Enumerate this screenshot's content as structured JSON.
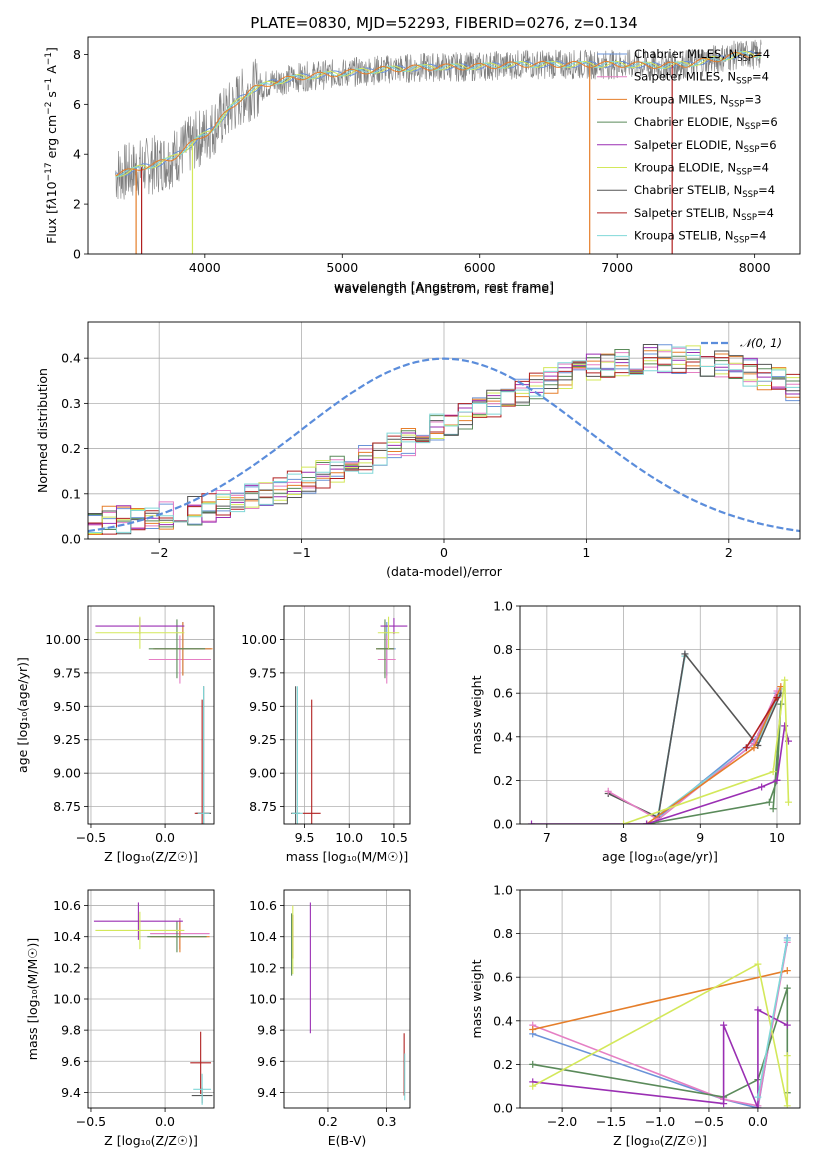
{
  "colors": {
    "chabrier_miles": "#6a93d8",
    "salpeter_miles": "#e57fc4",
    "kroupa_miles": "#e57e2a",
    "chabrier_elodie": "#5a8a5a",
    "salpeter_elodie": "#9a2fb3",
    "kroupa_elodie": "#d3e85a",
    "chabrier_stelib": "#555555",
    "salpeter_stelib": "#b02020",
    "kroupa_stelib": "#80d8d8",
    "normal": "#5b8ddb"
  },
  "chart_data": [
    {
      "id": "spectrum",
      "type": "line",
      "title": "PLATE=0830, MJD=52293, FIBERID=0276, z=0.134",
      "xlabel": "wavelength [Angstrom, rest frame]",
      "ylabel_html": "Flux [f<tspan font-style='italic'>λ</tspan>10<tspan dy='-5' font-size='9'>−17</tspan><tspan dy='5'> erg cm</tspan><tspan dy='-5' font-size='9'>−2</tspan><tspan dy='5'> s</tspan><tspan dy='-5' font-size='9'>−1</tspan><tspan dy='5'> A</tspan><tspan dy='-5' font-size='9'>−1</tspan><tspan dy='5'>]</tspan>",
      "xlim": [
        3150,
        8330
      ],
      "ylim": [
        0,
        8.7
      ],
      "xticks": [
        4000,
        5000,
        6000,
        7000,
        8000
      ],
      "yticks": [
        0,
        2,
        4,
        6,
        8
      ],
      "legend_position": "top-right",
      "legend": [
        {
          "label": "Chabrier MILES, N",
          "sub": "SSP",
          "n": "=4",
          "color_key": "chabrier_miles"
        },
        {
          "label": "Salpeter MILES, N",
          "sub": "SSP",
          "n": "=4",
          "color_key": "salpeter_miles"
        },
        {
          "label": "Kroupa MILES, N",
          "sub": "SSP",
          "n": "=3",
          "color_key": "kroupa_miles"
        },
        {
          "label": "Chabrier ELODIE, N",
          "sub": "SSP",
          "n": "=6",
          "color_key": "chabrier_elodie"
        },
        {
          "label": "Salpeter ELODIE, N",
          "sub": "SSP",
          "n": "=6",
          "color_key": "salpeter_elodie"
        },
        {
          "label": "Kroupa ELODIE, N",
          "sub": "SSP",
          "n": "=4",
          "color_key": "kroupa_elodie"
        },
        {
          "label": "Chabrier STELIB, N",
          "sub": "SSP",
          "n": "=4",
          "color_key": "chabrier_stelib"
        },
        {
          "label": "Salpeter STELIB, N",
          "sub": "SSP",
          "n": "=4",
          "color_key": "salpeter_stelib"
        },
        {
          "label": "Kroupa STELIB, N",
          "sub": "SSP",
          "n": "=4",
          "color_key": "kroupa_stelib"
        }
      ],
      "data_envelope": {
        "x": [
          3350,
          3450,
          3550,
          3650,
          3750,
          3850,
          3950,
          4050,
          4150,
          4250,
          4350,
          4500,
          4700,
          4900,
          5100,
          5300,
          5500,
          5700,
          5900,
          6100,
          6300,
          6500,
          6700,
          6900,
          7100,
          7300,
          7500,
          7700,
          7900,
          8050
        ],
        "y": [
          3.2,
          3.3,
          3.5,
          3.6,
          3.8,
          4.2,
          4.6,
          5.0,
          5.6,
          6.2,
          6.6,
          6.9,
          7.1,
          7.2,
          7.3,
          7.4,
          7.45,
          7.5,
          7.5,
          7.55,
          7.6,
          7.6,
          7.6,
          7.6,
          7.6,
          7.55,
          7.6,
          7.8,
          8.0,
          8.0
        ]
      }
    },
    {
      "id": "residuals",
      "type": "histogram",
      "xlabel": "(data-model)/error",
      "ylabel": "Normed distribution",
      "xlim": [
        -2.5,
        2.5
      ],
      "ylim": [
        0,
        0.48
      ],
      "xticks": [
        -2,
        -1,
        0,
        1,
        2
      ],
      "yticks": [
        0.0,
        0.1,
        0.2,
        0.3,
        0.4
      ],
      "legend_position": "top-right",
      "legend": [
        {
          "label": "𝒩(0, 1)",
          "color_key": "normal"
        }
      ],
      "bin_width": 0.1,
      "base_series": [
        0.037,
        0.04,
        0.042,
        0.045,
        0.048,
        0.052,
        0.057,
        0.062,
        0.068,
        0.075,
        0.083,
        0.091,
        0.1,
        0.109,
        0.119,
        0.13,
        0.141,
        0.152,
        0.164,
        0.176,
        0.19,
        0.203,
        0.216,
        0.23,
        0.245,
        0.258,
        0.272,
        0.287,
        0.3,
        0.313,
        0.326,
        0.338,
        0.349,
        0.36,
        0.369,
        0.377,
        0.384,
        0.39,
        0.395,
        0.398,
        0.399,
        0.398,
        0.395,
        0.39,
        0.384,
        0.377,
        0.369,
        0.36,
        0.349,
        0.338,
        0.326
      ]
    },
    {
      "id": "age_vs_Z",
      "type": "errorbar",
      "xlabel": "Z [log₁₀(Z/Z☉)]",
      "ylabel": "age  [log₁₀(age/yr)]",
      "xlim": [
        -0.52,
        0.33
      ],
      "ylim": [
        8.62,
        10.25
      ],
      "xticks": [
        -0.5,
        0.0
      ],
      "xticklabels": [
        "−0.5",
        "0.0"
      ],
      "yticks": [
        8.75,
        9.0,
        9.25,
        9.5,
        9.75,
        10.0
      ],
      "yticklabels": [
        "8.75",
        "9.00",
        "9.25",
        "9.50",
        "9.75",
        "10.00"
      ],
      "points": [
        {
          "x": 0.12,
          "y": 9.93,
          "xerr": 0.19,
          "yerr": 0.2,
          "color_key": "chabrier_miles"
        },
        {
          "x": 0.1,
          "y": 9.85,
          "xerr": 0.21,
          "yerr": 0.18,
          "color_key": "salpeter_miles"
        },
        {
          "x": 0.12,
          "y": 9.93,
          "xerr": 0.2,
          "yerr": 0.2,
          "color_key": "kroupa_miles"
        },
        {
          "x": 0.08,
          "y": 9.93,
          "xerr": 0.19,
          "yerr": 0.22,
          "color_key": "chabrier_elodie"
        },
        {
          "x": -0.17,
          "y": 10.1,
          "xerr": 0.3,
          "yerr": 0.06,
          "color_key": "salpeter_elodie"
        },
        {
          "x": -0.17,
          "y": 10.05,
          "xerr": 0.3,
          "yerr": 0.12,
          "color_key": "kroupa_elodie"
        },
        {
          "x": 0.26,
          "y": 8.7,
          "xerr": 0.05,
          "yerr": 0.95,
          "color_key": "chabrier_stelib"
        },
        {
          "x": 0.25,
          "y": 8.7,
          "xerr": 0.05,
          "yerr": 0.85,
          "color_key": "salpeter_stelib"
        },
        {
          "x": 0.26,
          "y": 8.7,
          "xerr": 0.04,
          "yerr": 0.95,
          "color_key": "kroupa_stelib"
        }
      ]
    },
    {
      "id": "age_vs_mass",
      "type": "errorbar",
      "xlabel": "mass [log₁₀(M/M☉)]",
      "xlim": [
        9.27,
        10.68
      ],
      "ylim": [
        8.62,
        10.25
      ],
      "xticks": [
        9.5,
        10.0,
        10.5
      ],
      "xticklabels": [
        "9.5",
        "10.0",
        "10.5"
      ],
      "yticks": [
        8.75,
        9.0,
        9.25,
        9.5,
        9.75,
        10.0
      ],
      "yticklabels": [
        "8.75",
        "9.00",
        "9.25",
        "9.50",
        "9.75",
        "10.00"
      ],
      "points": [
        {
          "x": 10.42,
          "y": 9.93,
          "xerr": 0.1,
          "yerr": 0.2,
          "color_key": "chabrier_miles"
        },
        {
          "x": 10.42,
          "y": 9.85,
          "xerr": 0.1,
          "yerr": 0.18,
          "color_key": "salpeter_miles"
        },
        {
          "x": 10.4,
          "y": 9.93,
          "xerr": 0.1,
          "yerr": 0.2,
          "color_key": "kroupa_miles"
        },
        {
          "x": 10.4,
          "y": 9.93,
          "xerr": 0.1,
          "yerr": 0.22,
          "color_key": "chabrier_elodie"
        },
        {
          "x": 10.5,
          "y": 10.1,
          "xerr": 0.15,
          "yerr": 0.06,
          "color_key": "salpeter_elodie"
        },
        {
          "x": 10.44,
          "y": 10.05,
          "xerr": 0.12,
          "yerr": 0.12,
          "color_key": "kroupa_elodie"
        },
        {
          "x": 9.4,
          "y": 8.7,
          "xerr": 0.05,
          "yerr": 0.95,
          "color_key": "chabrier_stelib"
        },
        {
          "x": 9.58,
          "y": 8.7,
          "xerr": 0.1,
          "yerr": 0.85,
          "color_key": "salpeter_stelib"
        },
        {
          "x": 9.42,
          "y": 8.7,
          "xerr": 0.06,
          "yerr": 0.95,
          "color_key": "kroupa_stelib"
        }
      ]
    },
    {
      "id": "weight_vs_age",
      "type": "line",
      "xlabel": "age  [log₁₀(age/yr)]",
      "ylabel": "mass weight",
      "xlim": [
        6.65,
        10.3
      ],
      "ylim": [
        0,
        1
      ],
      "xticks": [
        7,
        8,
        9,
        10
      ],
      "yticks": [
        0.0,
        0.2,
        0.4,
        0.6,
        0.8,
        1.0
      ],
      "series": [
        {
          "color_key": "chabrier_miles",
          "x": [
            8.8,
            8.45,
            9.75,
            10.0
          ],
          "y": [
            0.78,
            0.03,
            0.4,
            0.6
          ]
        },
        {
          "color_key": "kroupa_stelib",
          "x": [
            8.8,
            8.45,
            9.75,
            10.05
          ],
          "y": [
            0.77,
            0.04,
            0.38,
            0.62
          ]
        },
        {
          "color_key": "chabrier_stelib",
          "x": [
            7.8,
            8.45,
            8.8,
            9.75,
            10.05
          ],
          "y": [
            0.14,
            0.03,
            0.78,
            0.36,
            0.6
          ]
        },
        {
          "color_key": "salpeter_miles",
          "x": [
            7.8,
            8.45,
            9.7,
            10.0
          ],
          "y": [
            0.15,
            0.02,
            0.37,
            0.61
          ]
        },
        {
          "color_key": "kroupa_miles",
          "x": [
            8.3,
            9.7,
            10.05
          ],
          "y": [
            0.0,
            0.35,
            0.63
          ]
        },
        {
          "color_key": "chabrier_elodie",
          "x": [
            8.3,
            9.9,
            10.0,
            10.05,
            9.95
          ],
          "y": [
            0.0,
            0.1,
            0.2,
            0.55,
            0.07
          ]
        },
        {
          "color_key": "salpeter_elodie",
          "x": [
            6.8,
            8.3,
            9.8,
            10.0,
            10.1,
            10.15
          ],
          "y": [
            0.0,
            0.0,
            0.17,
            0.2,
            0.45,
            0.38
          ]
        },
        {
          "color_key": "kroupa_elodie",
          "x": [
            8.0,
            9.95,
            10.1,
            10.15
          ],
          "y": [
            0.0,
            0.24,
            0.66,
            0.1
          ]
        },
        {
          "color_key": "salpeter_stelib",
          "x": [
            9.6,
            10.0
          ],
          "y": [
            0.35,
            0.58
          ]
        }
      ]
    },
    {
      "id": "mass_vs_Z",
      "type": "errorbar",
      "xlabel": "Z [log₁₀(Z/Z☉)]",
      "ylabel": "mass [log₁₀(M/M☉)]",
      "xlim": [
        -0.52,
        0.33
      ],
      "ylim": [
        9.3,
        10.7
      ],
      "xticks": [
        -0.5,
        0.0
      ],
      "xticklabels": [
        "−0.5",
        "0.0"
      ],
      "yticks": [
        9.4,
        9.6,
        9.8,
        10.0,
        10.2,
        10.4,
        10.6
      ],
      "yticklabels": [
        "9.4",
        "9.6",
        "9.8",
        "10.0",
        "10.2",
        "10.4",
        "10.6"
      ],
      "points": [
        {
          "x": 0.1,
          "y": 10.42,
          "xerr": 0.2,
          "yerr": 0.1,
          "color_key": "chabrier_miles"
        },
        {
          "x": 0.1,
          "y": 10.42,
          "xerr": 0.2,
          "yerr": 0.1,
          "color_key": "salpeter_miles"
        },
        {
          "x": 0.1,
          "y": 10.4,
          "xerr": 0.2,
          "yerr": 0.1,
          "color_key": "kroupa_miles"
        },
        {
          "x": 0.08,
          "y": 10.4,
          "xerr": 0.2,
          "yerr": 0.1,
          "color_key": "chabrier_elodie"
        },
        {
          "x": -0.18,
          "y": 10.5,
          "xerr": 0.3,
          "yerr": 0.12,
          "color_key": "salpeter_elodie"
        },
        {
          "x": -0.17,
          "y": 10.44,
          "xerr": 0.3,
          "yerr": 0.12,
          "color_key": "kroupa_elodie"
        },
        {
          "x": 0.25,
          "y": 9.38,
          "xerr": 0.07,
          "yerr": 0.05,
          "color_key": "chabrier_stelib"
        },
        {
          "x": 0.24,
          "y": 9.59,
          "xerr": 0.07,
          "yerr": 0.2,
          "color_key": "salpeter_stelib"
        },
        {
          "x": 0.25,
          "y": 9.42,
          "xerr": 0.06,
          "yerr": 0.1,
          "color_key": "kroupa_stelib"
        }
      ]
    },
    {
      "id": "mass_vs_ebv",
      "type": "errorbar",
      "xlabel": "E(B-V)",
      "xlim": [
        0.125,
        0.34
      ],
      "ylim": [
        9.3,
        10.7
      ],
      "xticks": [
        0.2,
        0.3
      ],
      "xticklabels": [
        "0.2",
        "0.3"
      ],
      "yticks": [
        9.4,
        9.6,
        9.8,
        10.0,
        10.2,
        10.4,
        10.6
      ],
      "yticklabels": [
        "9.4",
        "9.6",
        "9.8",
        "10.0",
        "10.2",
        "10.4",
        "10.6"
      ],
      "points": [
        {
          "x": 0.14,
          "y": 10.4,
          "xerr": 0,
          "yerr": 0.14,
          "color_key": "chabrier_miles"
        },
        {
          "x": 0.14,
          "y": 10.4,
          "xerr": 0,
          "yerr": 0.14,
          "color_key": "kroupa_miles"
        },
        {
          "x": 0.138,
          "y": 10.35,
          "xerr": 0,
          "yerr": 0.2,
          "color_key": "chabrier_elodie"
        },
        {
          "x": 0.14,
          "y": 10.38,
          "xerr": 0,
          "yerr": 0.22,
          "color_key": "kroupa_elodie"
        },
        {
          "x": 0.17,
          "y": 10.2,
          "xerr": 0,
          "yerr": 0.42,
          "color_key": "salpeter_elodie"
        },
        {
          "x": 0.33,
          "y": 9.58,
          "xerr": 0,
          "yerr": 0.2,
          "color_key": "salpeter_stelib"
        },
        {
          "x": 0.331,
          "y": 9.5,
          "xerr": 0,
          "yerr": 0.15,
          "color_key": "kroupa_stelib"
        }
      ]
    },
    {
      "id": "weight_vs_Z",
      "type": "line",
      "xlabel": "Z [log₁₀(Z/Z☉)]",
      "ylabel": "mass weight",
      "xlim": [
        -2.43,
        0.43
      ],
      "ylim": [
        0,
        1
      ],
      "xticks": [
        -2.0,
        -1.5,
        -1.0,
        -0.5,
        0.0
      ],
      "xticklabels": [
        "−2.0",
        "−1.5",
        "−1.0",
        "−0.5",
        "0.0"
      ],
      "yticks": [
        0.0,
        0.2,
        0.4,
        0.6,
        0.8,
        1.0
      ],
      "series": [
        {
          "color_key": "chabrier_miles",
          "x": [
            -2.3,
            -0.35,
            0.0,
            0.3
          ],
          "y": [
            0.34,
            0.04,
            0.0,
            0.78
          ]
        },
        {
          "color_key": "salpeter_miles",
          "x": [
            -2.3,
            -0.35,
            0.0,
            0.3
          ],
          "y": [
            0.38,
            0.04,
            0.01,
            0.76
          ]
        },
        {
          "color_key": "kroupa_miles",
          "x": [
            -2.3,
            0.3
          ],
          "y": [
            0.36,
            0.63
          ]
        },
        {
          "color_key": "chabrier_elodie",
          "x": [
            -2.3,
            -0.35,
            0.0,
            0.3,
            0.3
          ],
          "y": [
            0.2,
            0.05,
            0.13,
            0.55,
            0.07
          ]
        },
        {
          "color_key": "salpeter_elodie",
          "x": [
            -2.3,
            -0.35,
            -0.35,
            0.0,
            0.0,
            0.3
          ],
          "y": [
            0.12,
            0.02,
            0.38,
            0.0,
            0.45,
            0.38
          ]
        },
        {
          "color_key": "kroupa_elodie",
          "x": [
            -2.3,
            0.0,
            0.3,
            0.3
          ],
          "y": [
            0.1,
            0.66,
            0.01,
            0.24
          ]
        },
        {
          "color_key": "kroupa_stelib",
          "x": [
            0.0,
            0.3
          ],
          "y": [
            0.05,
            0.77
          ]
        }
      ]
    }
  ]
}
